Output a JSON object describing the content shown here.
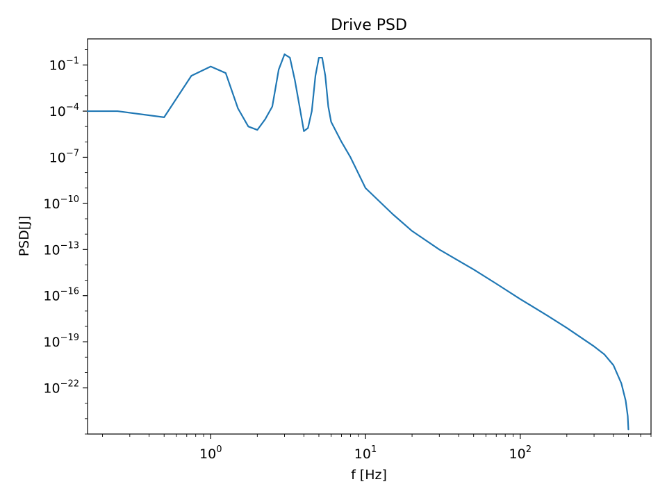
{
  "chart_data": {
    "type": "line",
    "title": "Drive PSD",
    "xlabel": "f [Hz]",
    "ylabel": "PSD[J]",
    "x_scale": "log",
    "y_scale": "log",
    "xlim": [
      0.16,
      700
    ],
    "ylim": [
      1e-25,
      5
    ],
    "grid": false,
    "line_color": "#1f77b4",
    "x_ticks": [
      {
        "base": "10",
        "exp": "0",
        "value": 1
      },
      {
        "base": "10",
        "exp": "1",
        "value": 10
      },
      {
        "base": "10",
        "exp": "2",
        "value": 100
      }
    ],
    "y_ticks": [
      {
        "base": "10",
        "exp": "−1",
        "value": 0.1
      },
      {
        "base": "10",
        "exp": "−4",
        "value": 0.0001
      },
      {
        "base": "10",
        "exp": "−7",
        "value": 1e-07
      },
      {
        "base": "10",
        "exp": "−10",
        "value": 1e-10
      },
      {
        "base": "10",
        "exp": "−13",
        "value": 1e-13
      },
      {
        "base": "10",
        "exp": "−16",
        "value": 1e-16
      },
      {
        "base": "10",
        "exp": "−19",
        "value": 1e-19
      },
      {
        "base": "10",
        "exp": "−22",
        "value": 1e-22
      }
    ],
    "series": [
      {
        "x": [
          0.16,
          0.25,
          0.5,
          0.75,
          1.0,
          1.25,
          1.5,
          1.75,
          2.0,
          2.25,
          2.5,
          2.75,
          3.0,
          3.25,
          3.5,
          3.75,
          4.0,
          4.25,
          4.5,
          4.75,
          5.0,
          5.25,
          5.5,
          5.75,
          6.0,
          7.0,
          8.0,
          10.0,
          15.0,
          20.0,
          30.0,
          50.0,
          70.0,
          100.0,
          150.0,
          200.0,
          300.0,
          350.0,
          400.0,
          450.0,
          480.0,
          495.0,
          500.0
        ],
        "y": [
          0.0001,
          0.0001,
          4e-05,
          0.02,
          0.08,
          0.03,
          0.00015,
          1e-05,
          6e-06,
          3e-05,
          0.0002,
          0.05,
          0.5,
          0.3,
          0.01,
          0.0002,
          5e-06,
          8e-06,
          0.0001,
          0.02,
          0.3,
          0.3,
          0.02,
          0.0002,
          2e-05,
          1e-06,
          1e-07,
          1e-09,
          2e-11,
          1.6e-12,
          1e-13,
          5e-15,
          6e-16,
          6e-17,
          5e-18,
          8e-19,
          5e-20,
          1.5e-20,
          3e-21,
          2e-22,
          1.5e-23,
          1.5e-24,
          2e-25
        ]
      }
    ]
  }
}
